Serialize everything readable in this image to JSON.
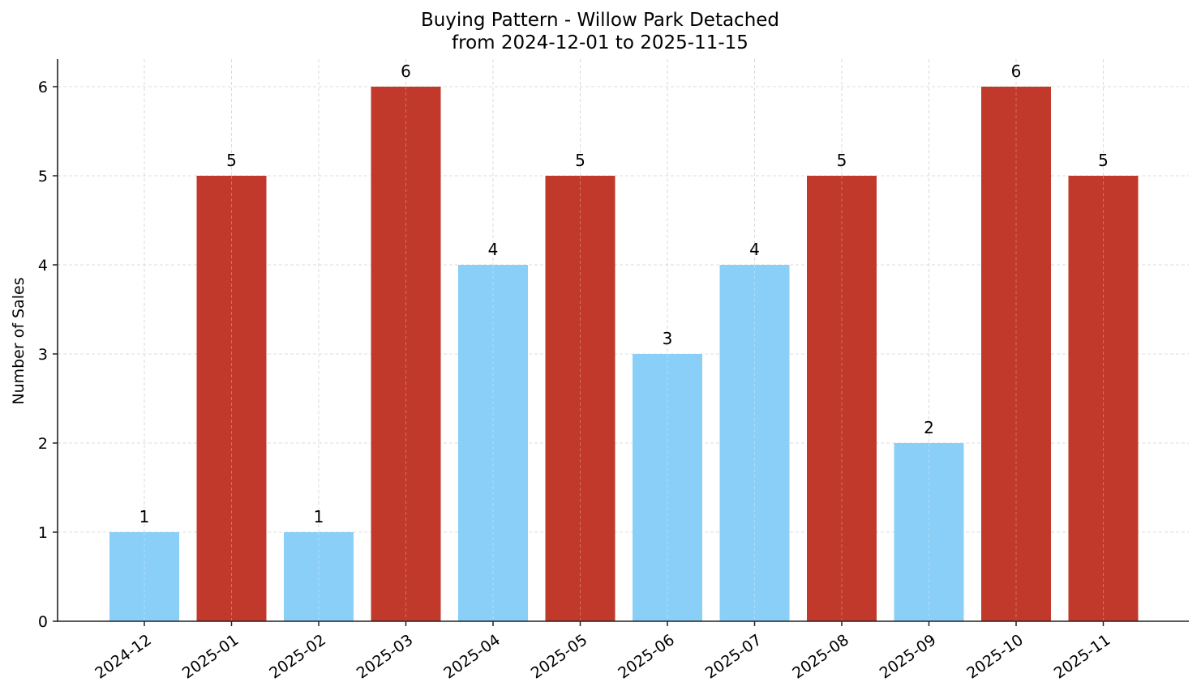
{
  "chart_data": {
    "type": "bar",
    "title": "Buying Pattern - Willow Park Detached",
    "subtitle": "from 2024-12-01 to 2025-11-15",
    "xlabel": "",
    "ylabel": "Number of Sales",
    "categories": [
      "2024-12",
      "2025-01",
      "2025-02",
      "2025-03",
      "2025-04",
      "2025-05",
      "2025-06",
      "2025-07",
      "2025-08",
      "2025-09",
      "2025-10",
      "2025-11"
    ],
    "values": [
      1,
      5,
      1,
      6,
      4,
      5,
      3,
      4,
      5,
      2,
      6,
      5
    ],
    "bar_colors": [
      "#89cff8",
      "#c0392b",
      "#89cff8",
      "#c0392b",
      "#89cff8",
      "#c0392b",
      "#89cff8",
      "#89cff8",
      "#c0392b",
      "#89cff8",
      "#c0392b",
      "#c0392b"
    ],
    "data_labels": [
      "1",
      "5",
      "1",
      "6",
      "4",
      "5",
      "3",
      "4",
      "5",
      "2",
      "6",
      "5"
    ],
    "yticks": [
      0,
      1,
      2,
      3,
      4,
      5,
      6
    ],
    "ylim": [
      0,
      6.3
    ],
    "grid": true,
    "grid_style": "dashed",
    "legend": null,
    "xtick_rotation": 35
  },
  "colors": {
    "high": "#c0392b",
    "low": "#89cff8",
    "grid": "#d3d3d3",
    "axis": "#222222"
  }
}
